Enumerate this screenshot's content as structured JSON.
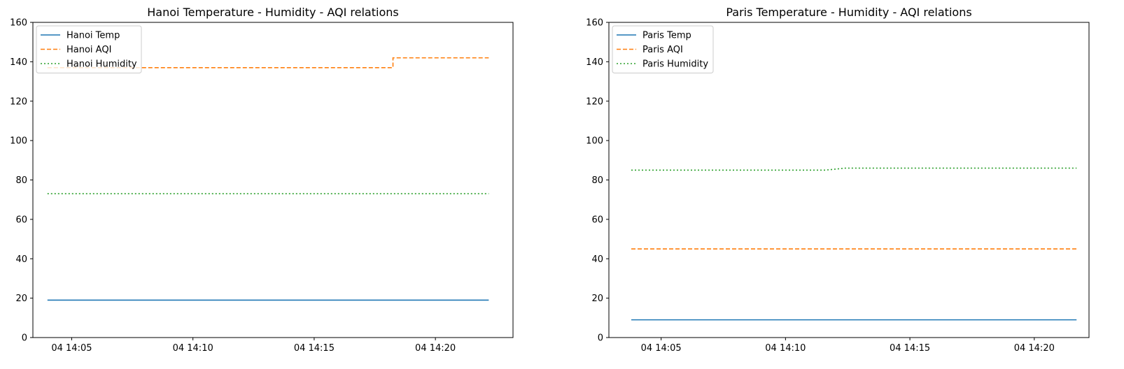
{
  "chart_data": [
    {
      "type": "line",
      "title": "Hanoi Temperature - Humidity - AQI relations",
      "xlabel": "",
      "ylabel": "",
      "ylim": [
        0,
        160
      ],
      "yticks": [
        0,
        20,
        40,
        60,
        80,
        100,
        120,
        140,
        160
      ],
      "xlim": [
        "14:03.4",
        "14:23.2"
      ],
      "xticks": [
        {
          "label": "04 14:05",
          "minutes": 5
        },
        {
          "label": "04 14:10",
          "minutes": 10
        },
        {
          "label": "04 14:15",
          "minutes": 15
        },
        {
          "label": "04 14:20",
          "minutes": 20
        }
      ],
      "grid": false,
      "legend": "upper-left",
      "series": [
        {
          "name": "Hanoi Temp",
          "color": "#1f77b4",
          "dash": "solid",
          "points": [
            [
              "14:04.0",
              19
            ],
            [
              "14:22.2",
              19
            ]
          ]
        },
        {
          "name": "Hanoi AQI",
          "color": "#ff7f0e",
          "dash": "dashed",
          "points": [
            [
              "14:04.0",
              137
            ],
            [
              "14:18.25",
              137
            ],
            [
              "14:18.25",
              142
            ],
            [
              "14:22.2",
              142
            ]
          ]
        },
        {
          "name": "Hanoi Humidity",
          "color": "#2ca02c",
          "dash": "dotted",
          "points": [
            [
              "14:04.0",
              73
            ],
            [
              "14:22.2",
              73
            ]
          ]
        }
      ]
    },
    {
      "type": "line",
      "title": "Paris Temperature - Humidity - AQI relations",
      "xlabel": "",
      "ylabel": "",
      "ylim": [
        0,
        160
      ],
      "yticks": [
        0,
        20,
        40,
        60,
        80,
        100,
        120,
        140,
        160
      ],
      "xlim": [
        "14:02.9",
        "14:22.2"
      ],
      "xticks": [
        {
          "label": "04 14:05",
          "minutes": 5
        },
        {
          "label": "04 14:10",
          "minutes": 10
        },
        {
          "label": "04 14:15",
          "minutes": 15
        },
        {
          "label": "04 14:20",
          "minutes": 20
        }
      ],
      "grid": false,
      "legend": "upper-left",
      "series": [
        {
          "name": "Paris Temp",
          "color": "#1f77b4",
          "dash": "solid",
          "points": [
            [
              "14:03.8",
              9
            ],
            [
              "14:21.7",
              9
            ]
          ]
        },
        {
          "name": "Paris AQI",
          "color": "#ff7f0e",
          "dash": "dashed",
          "points": [
            [
              "14:03.8",
              45
            ],
            [
              "14:21.7",
              45
            ]
          ]
        },
        {
          "name": "Paris Humidity",
          "color": "#2ca02c",
          "dash": "dotted",
          "points": [
            [
              "14:03.8",
              85
            ],
            [
              "14:11.6",
              85
            ],
            [
              "14:12.4",
              86
            ],
            [
              "14:21.7",
              86
            ]
          ]
        }
      ]
    }
  ]
}
